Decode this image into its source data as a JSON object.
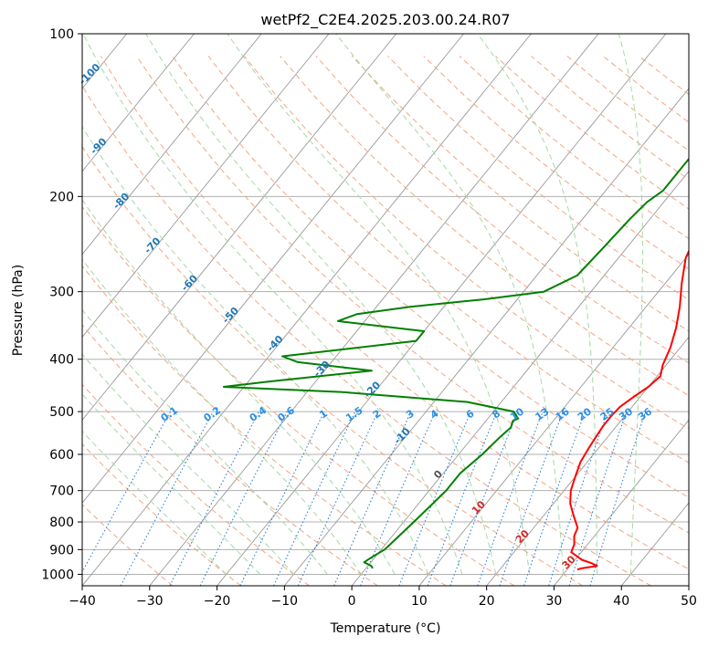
{
  "chart_data": {
    "type": "line",
    "title": "wetPf2_C2E4.2025.203.00.24.R07",
    "xlabel": "Temperature (°C)",
    "ylabel": "Pressure (hPa)",
    "xlim": [
      -40,
      50
    ],
    "ylim": [
      1050,
      100
    ],
    "y_scale": "log",
    "grid": true,
    "skew": true,
    "x_ticks": [
      "−40",
      "−30",
      "−20",
      "−10",
      "0",
      "10",
      "20",
      "30",
      "40",
      "50"
    ],
    "y_ticks": [
      "100",
      "200",
      "300",
      "400",
      "500",
      "600",
      "700",
      "800",
      "900",
      "1000"
    ],
    "colors": {
      "temperature": "#ff0000",
      "dewpoint": "#008000",
      "dry_adiabat": "#f4a582",
      "moist_adiabat": "#a6d8a6",
      "mixing_ratio": "#1f77d4",
      "isotherm": "#888888",
      "label_blue": "#1f77b4",
      "label_lightblue": "#2a8fe6",
      "label_red": "#d62728",
      "label_gray": "#555555"
    },
    "series": [
      {
        "name": "",
        "role": "temperature",
        "points": [
          [
            165,
            2.0
          ],
          [
            190,
            4.0
          ],
          [
            210,
            6.0
          ],
          [
            230,
            8.5
          ],
          [
            260,
            10.0
          ],
          [
            290,
            12.5
          ],
          [
            320,
            15.0
          ],
          [
            350,
            17.0
          ],
          [
            380,
            18.5
          ],
          [
            410,
            19.5
          ],
          [
            430,
            20.5
          ],
          [
            450,
            20.0
          ],
          [
            470,
            19.0
          ],
          [
            490,
            18.2
          ],
          [
            510,
            18.0
          ],
          [
            530,
            18.0
          ],
          [
            550,
            18.2
          ],
          [
            580,
            18.5
          ],
          [
            620,
            19.0
          ],
          [
            660,
            20.0
          ],
          [
            700,
            21.0
          ],
          [
            740,
            22.5
          ],
          [
            780,
            24.5
          ],
          [
            820,
            26.5
          ],
          [
            850,
            27.0
          ],
          [
            880,
            28.0
          ],
          [
            910,
            28.5
          ],
          [
            940,
            31.0
          ],
          [
            955,
            33.0
          ],
          [
            965,
            34.0
          ],
          [
            975,
            32.0
          ],
          [
            980,
            31.5
          ]
        ]
      },
      {
        "name": "",
        "role": "dewpoint",
        "points": [
          [
            100,
            -1.0
          ],
          [
            110,
            -2.0
          ],
          [
            125,
            -2.0
          ],
          [
            140,
            -2.0
          ],
          [
            165,
            -1.5
          ],
          [
            195,
            -1.5
          ],
          [
            205,
            -2.5
          ],
          [
            220,
            -3.0
          ],
          [
            250,
            -3.5
          ],
          [
            280,
            -4.0
          ],
          [
            300,
            -7.0
          ],
          [
            310,
            -15.0
          ],
          [
            320,
            -25.0
          ],
          [
            330,
            -32.0
          ],
          [
            340,
            -34.0
          ],
          [
            355,
            -20.0
          ],
          [
            370,
            -20.0
          ],
          [
            395,
            -38.0
          ],
          [
            405,
            -35.0
          ],
          [
            420,
            -23.0
          ],
          [
            440,
            -37.0
          ],
          [
            450,
            -43.0
          ],
          [
            460,
            -25.0
          ],
          [
            480,
            -5.0
          ],
          [
            500,
            3.0
          ],
          [
            515,
            4.5
          ],
          [
            520,
            4.0
          ],
          [
            535,
            4.5
          ],
          [
            560,
            4.0
          ],
          [
            600,
            3.5
          ],
          [
            650,
            2.5
          ],
          [
            700,
            2.5
          ],
          [
            750,
            2.0
          ],
          [
            800,
            1.5
          ],
          [
            850,
            1.0
          ],
          [
            900,
            0.5
          ],
          [
            930,
            -0.5
          ],
          [
            950,
            -1.0
          ],
          [
            965,
            0.5
          ],
          [
            975,
            1.0
          ]
        ]
      }
    ],
    "dry_adiabat_labels": [
      "-100",
      "-90",
      "-80",
      "-70",
      "-60",
      "-50",
      "-40",
      "-30",
      "-20",
      "-10",
      "0",
      "10",
      "20",
      "30",
      "40"
    ],
    "mixing_ratio_labels": [
      "0.1",
      "0.2",
      "0.4",
      "0.6",
      "1",
      "1.5",
      "2",
      "3",
      "4",
      "6",
      "8",
      "10",
      "13",
      "16",
      "20",
      "25",
      "30",
      "36"
    ]
  }
}
